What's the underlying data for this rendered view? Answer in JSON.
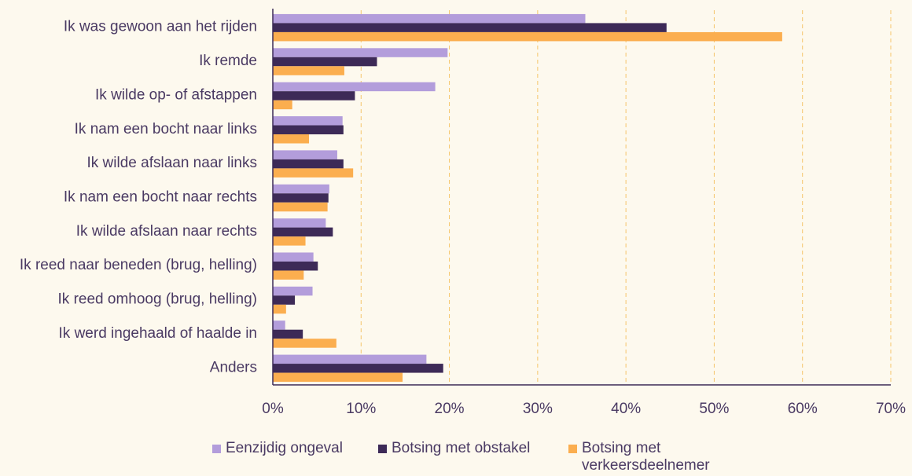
{
  "chart_data": {
    "type": "bar",
    "orientation": "horizontal",
    "categories": [
      "Ik was gewoon aan het rijden",
      "Ik remde",
      "Ik wilde op- of afstappen",
      "Ik nam een bocht naar links",
      "Ik wilde afslaan naar links",
      "Ik nam een bocht naar rechts",
      "Ik wilde afslaan naar rechts",
      "Ik reed naar beneden (brug, helling)",
      "Ik reed omhoog (brug, helling)",
      "Ik werd ingehaald of haalde in",
      "Anders"
    ],
    "series": [
      {
        "name": "Eenzijdig ongeval",
        "color": "#b39ddb",
        "values": [
          35.4,
          19.8,
          18.4,
          7.9,
          7.3,
          6.4,
          6.0,
          4.6,
          4.5,
          1.4,
          17.4
        ]
      },
      {
        "name": "Botsing met obstakel",
        "color": "#3d2a57",
        "values": [
          44.6,
          11.8,
          9.3,
          8.0,
          8.0,
          6.3,
          6.8,
          5.1,
          2.5,
          3.4,
          19.3
        ]
      },
      {
        "name": "Botsing met verkeersdeelnemer",
        "color": "#fbae4f",
        "values": [
          57.7,
          8.1,
          2.2,
          4.1,
          9.1,
          6.2,
          3.7,
          3.5,
          1.5,
          7.2,
          14.7
        ]
      }
    ],
    "xlim": [
      0,
      70
    ],
    "xticks": [
      {
        "value": 0,
        "label": "0%"
      },
      {
        "value": 10,
        "label": "10%"
      },
      {
        "value": 20,
        "label": "20%"
      },
      {
        "value": 30,
        "label": "30%"
      },
      {
        "value": 40,
        "label": "40%"
      },
      {
        "value": 50,
        "label": "50%"
      },
      {
        "value": 60,
        "label": "60%"
      },
      {
        "value": 70,
        "label": "70%"
      }
    ],
    "grid": true
  }
}
